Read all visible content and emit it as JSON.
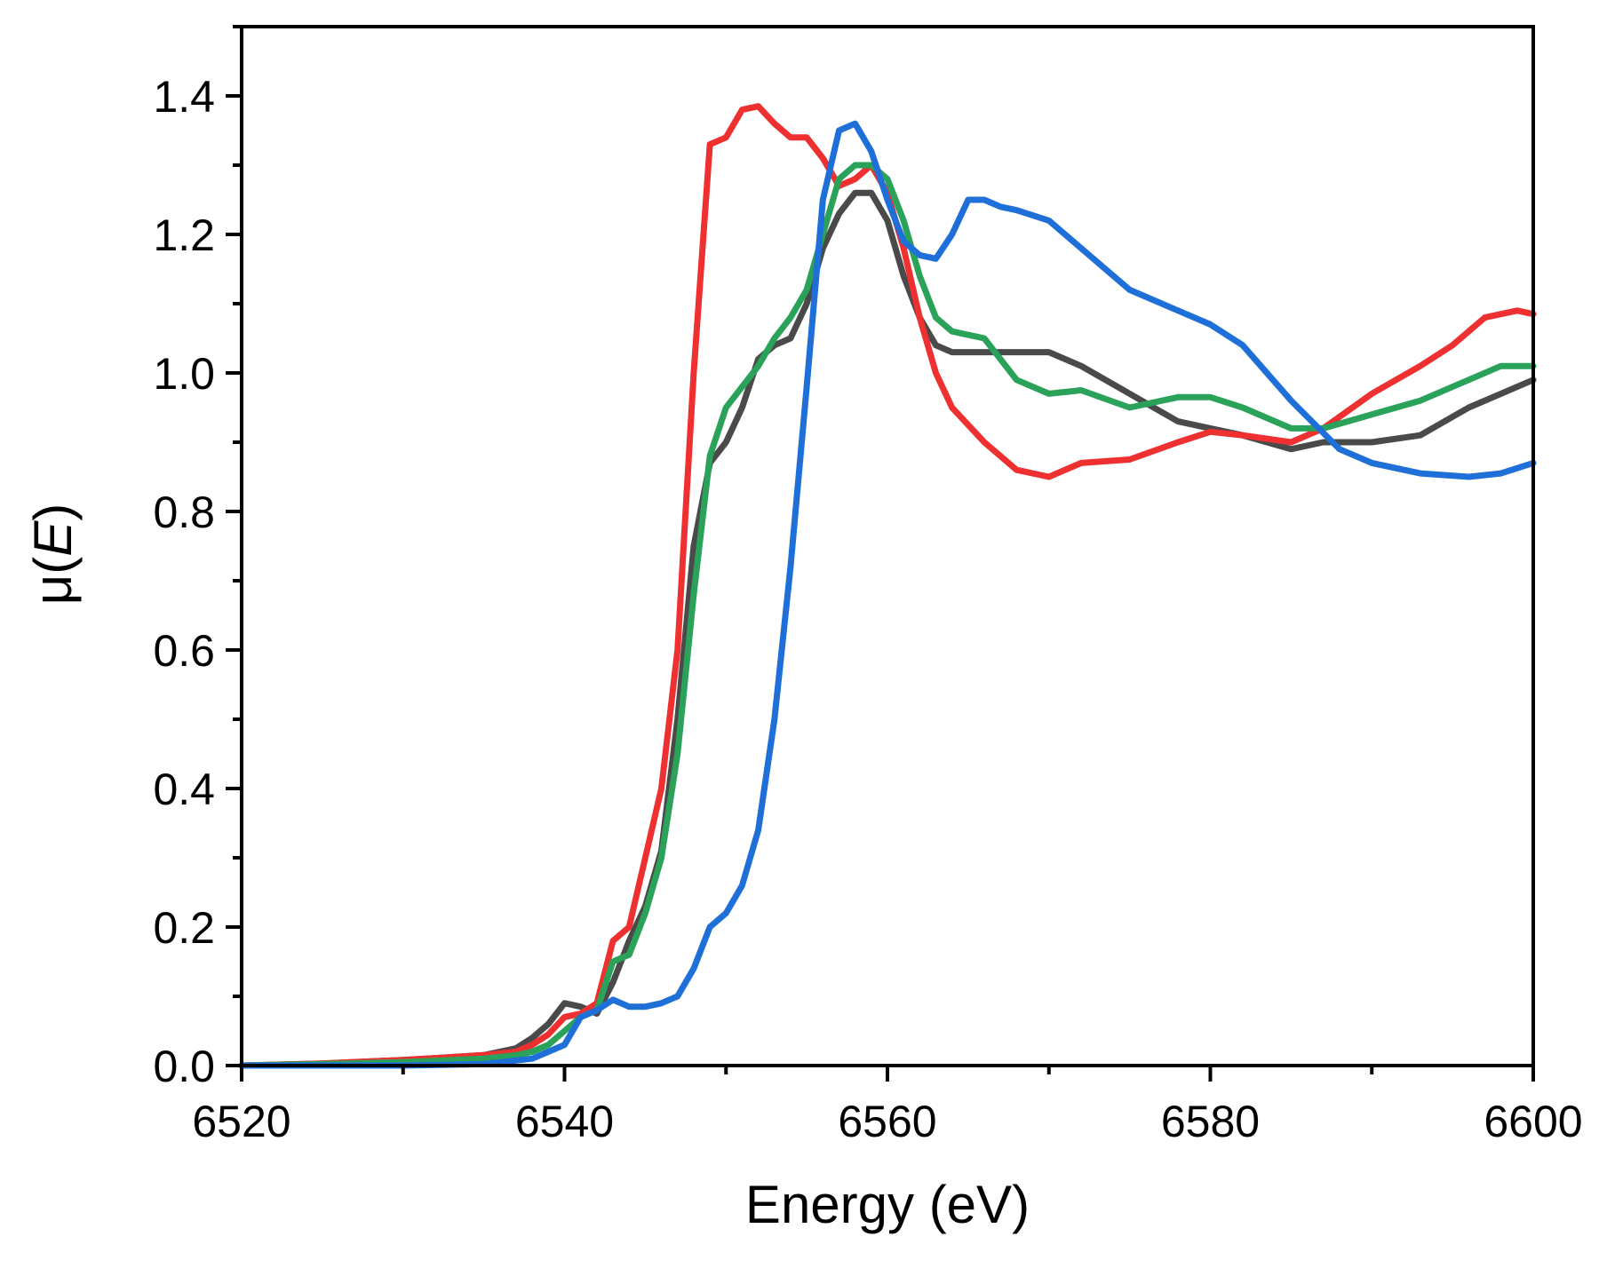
{
  "chart_data": {
    "type": "line",
    "title": "",
    "xlabel": "Energy (eV)",
    "ylabel_prefix": "μ(",
    "ylabel_var": "E",
    "ylabel_suffix": ")",
    "xlim": [
      6520,
      6600
    ],
    "ylim": [
      0,
      1.5
    ],
    "xticks": [
      6520,
      6540,
      6560,
      6580,
      6600
    ],
    "xtick_labels": [
      "6520",
      "6540",
      "6560",
      "6580",
      "6600"
    ],
    "yticks": [
      0,
      0.2,
      0.4,
      0.6,
      0.8,
      1.0,
      1.2,
      1.4
    ],
    "ytick_labels": [
      "0.0",
      "0.2",
      "0.4",
      "0.6",
      "0.8",
      "1.0",
      "1.2",
      "1.4"
    ],
    "grid": false,
    "series": [
      {
        "name": "black",
        "color": "#4a4a4a",
        "x": [
          6520,
          6525,
          6530,
          6535,
          6537,
          6538,
          6539,
          6540,
          6541,
          6542,
          6543,
          6544,
          6545,
          6546,
          6547,
          6548,
          6549,
          6550,
          6551,
          6552,
          6553,
          6554,
          6555,
          6556,
          6557,
          6558,
          6559,
          6560,
          6561,
          6562,
          6563,
          6564,
          6566,
          6568,
          6570,
          6572,
          6575,
          6578,
          6580,
          6582,
          6585,
          6587,
          6590,
          6593,
          6596,
          6600
        ],
        "y": [
          0.0,
          0.003,
          0.008,
          0.015,
          0.025,
          0.04,
          0.06,
          0.09,
          0.085,
          0.075,
          0.12,
          0.18,
          0.23,
          0.31,
          0.5,
          0.75,
          0.87,
          0.9,
          0.95,
          1.02,
          1.04,
          1.05,
          1.1,
          1.18,
          1.23,
          1.26,
          1.26,
          1.22,
          1.14,
          1.08,
          1.04,
          1.03,
          1.03,
          1.03,
          1.03,
          1.01,
          0.97,
          0.93,
          0.92,
          0.91,
          0.89,
          0.9,
          0.9,
          0.91,
          0.95,
          0.99
        ]
      },
      {
        "name": "red",
        "color": "#ee3030",
        "x": [
          6520,
          6525,
          6530,
          6535,
          6537,
          6538,
          6539,
          6540,
          6541,
          6542,
          6543,
          6544,
          6545,
          6546,
          6547,
          6548,
          6549,
          6550,
          6551,
          6552,
          6553,
          6554,
          6555,
          6556,
          6557,
          6558,
          6559,
          6560,
          6561,
          6562,
          6563,
          6564,
          6566,
          6568,
          6570,
          6572,
          6575,
          6578,
          6580,
          6582,
          6585,
          6587,
          6590,
          6593,
          6595,
          6597,
          6599,
          6600
        ],
        "y": [
          0.0,
          0.003,
          0.008,
          0.015,
          0.02,
          0.03,
          0.045,
          0.07,
          0.075,
          0.09,
          0.18,
          0.2,
          0.3,
          0.4,
          0.6,
          1.0,
          1.33,
          1.34,
          1.38,
          1.385,
          1.36,
          1.34,
          1.34,
          1.31,
          1.27,
          1.28,
          1.3,
          1.26,
          1.18,
          1.08,
          1.0,
          0.95,
          0.9,
          0.86,
          0.85,
          0.87,
          0.875,
          0.9,
          0.915,
          0.91,
          0.9,
          0.92,
          0.97,
          1.01,
          1.04,
          1.08,
          1.09,
          1.085
        ]
      },
      {
        "name": "green",
        "color": "#2aa25a",
        "x": [
          6520,
          6525,
          6530,
          6535,
          6537,
          6538,
          6539,
          6540,
          6541,
          6542,
          6543,
          6544,
          6545,
          6546,
          6547,
          6548,
          6549,
          6550,
          6551,
          6552,
          6553,
          6554,
          6555,
          6556,
          6557,
          6558,
          6559,
          6560,
          6561,
          6562,
          6563,
          6564,
          6566,
          6568,
          6570,
          6572,
          6575,
          6578,
          6580,
          6582,
          6585,
          6587,
          6590,
          6593,
          6596,
          6598,
          6600
        ],
        "y": [
          0.0,
          0.002,
          0.005,
          0.01,
          0.015,
          0.02,
          0.03,
          0.05,
          0.07,
          0.08,
          0.15,
          0.16,
          0.22,
          0.3,
          0.45,
          0.68,
          0.88,
          0.95,
          0.98,
          1.01,
          1.05,
          1.08,
          1.12,
          1.2,
          1.28,
          1.3,
          1.3,
          1.28,
          1.22,
          1.14,
          1.08,
          1.06,
          1.05,
          0.99,
          0.97,
          0.975,
          0.95,
          0.965,
          0.965,
          0.95,
          0.92,
          0.92,
          0.94,
          0.96,
          0.99,
          1.01,
          1.01
        ]
      },
      {
        "name": "blue",
        "color": "#1f6fd8",
        "x": [
          6520,
          6525,
          6530,
          6535,
          6538,
          6540,
          6541,
          6542,
          6543,
          6544,
          6545,
          6546,
          6547,
          6548,
          6549,
          6550,
          6551,
          6552,
          6553,
          6554,
          6555,
          6556,
          6557,
          6558,
          6559,
          6560,
          6561,
          6562,
          6563,
          6564,
          6565,
          6566,
          6567,
          6568,
          6570,
          6572,
          6575,
          6578,
          6580,
          6582,
          6585,
          6588,
          6590,
          6593,
          6596,
          6598,
          6600
        ],
        "y": [
          0.0,
          0.0,
          0.0,
          0.002,
          0.01,
          0.03,
          0.07,
          0.08,
          0.095,
          0.085,
          0.085,
          0.09,
          0.1,
          0.14,
          0.2,
          0.22,
          0.26,
          0.34,
          0.5,
          0.72,
          0.98,
          1.25,
          1.35,
          1.36,
          1.32,
          1.25,
          1.19,
          1.17,
          1.165,
          1.2,
          1.25,
          1.25,
          1.24,
          1.235,
          1.22,
          1.18,
          1.12,
          1.09,
          1.07,
          1.04,
          0.96,
          0.89,
          0.87,
          0.855,
          0.85,
          0.855,
          0.87
        ]
      }
    ]
  }
}
